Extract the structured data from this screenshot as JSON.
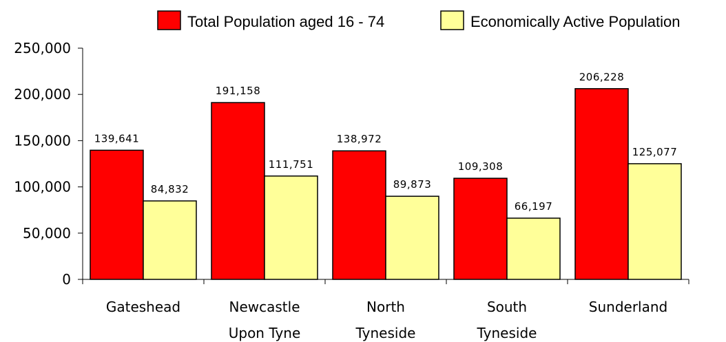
{
  "chart_data": {
    "type": "bar",
    "categories": [
      [
        "Gateshead"
      ],
      [
        "Newcastle",
        "Upon Tyne"
      ],
      [
        "North",
        "Tyneside"
      ],
      [
        "South",
        "Tyneside"
      ],
      [
        "Sunderland"
      ]
    ],
    "series": [
      {
        "name": "Total Population aged 16 - 74",
        "color": "#ff0000",
        "values": [
          139641,
          191158,
          138972,
          109308,
          206228
        ],
        "labels": [
          "139,641",
          "191,158",
          "138,972",
          "109,308",
          "206,228"
        ]
      },
      {
        "name": "Economically Active Population",
        "color": "#ffff99",
        "values": [
          84832,
          111751,
          89873,
          66197,
          125077
        ],
        "labels": [
          "84,832",
          "111,751",
          "89,873",
          "66,197",
          "125,077"
        ]
      }
    ],
    "ylim": [
      0,
      250000
    ],
    "yticks": [
      0,
      50000,
      100000,
      150000,
      200000,
      250000
    ],
    "ytick_labels": [
      "0",
      "50,000",
      "100,000",
      "150,000",
      "200,000",
      "250,000"
    ],
    "title": "",
    "xlabel": "",
    "ylabel": "",
    "legend_position": "top-right",
    "grid": false
  }
}
